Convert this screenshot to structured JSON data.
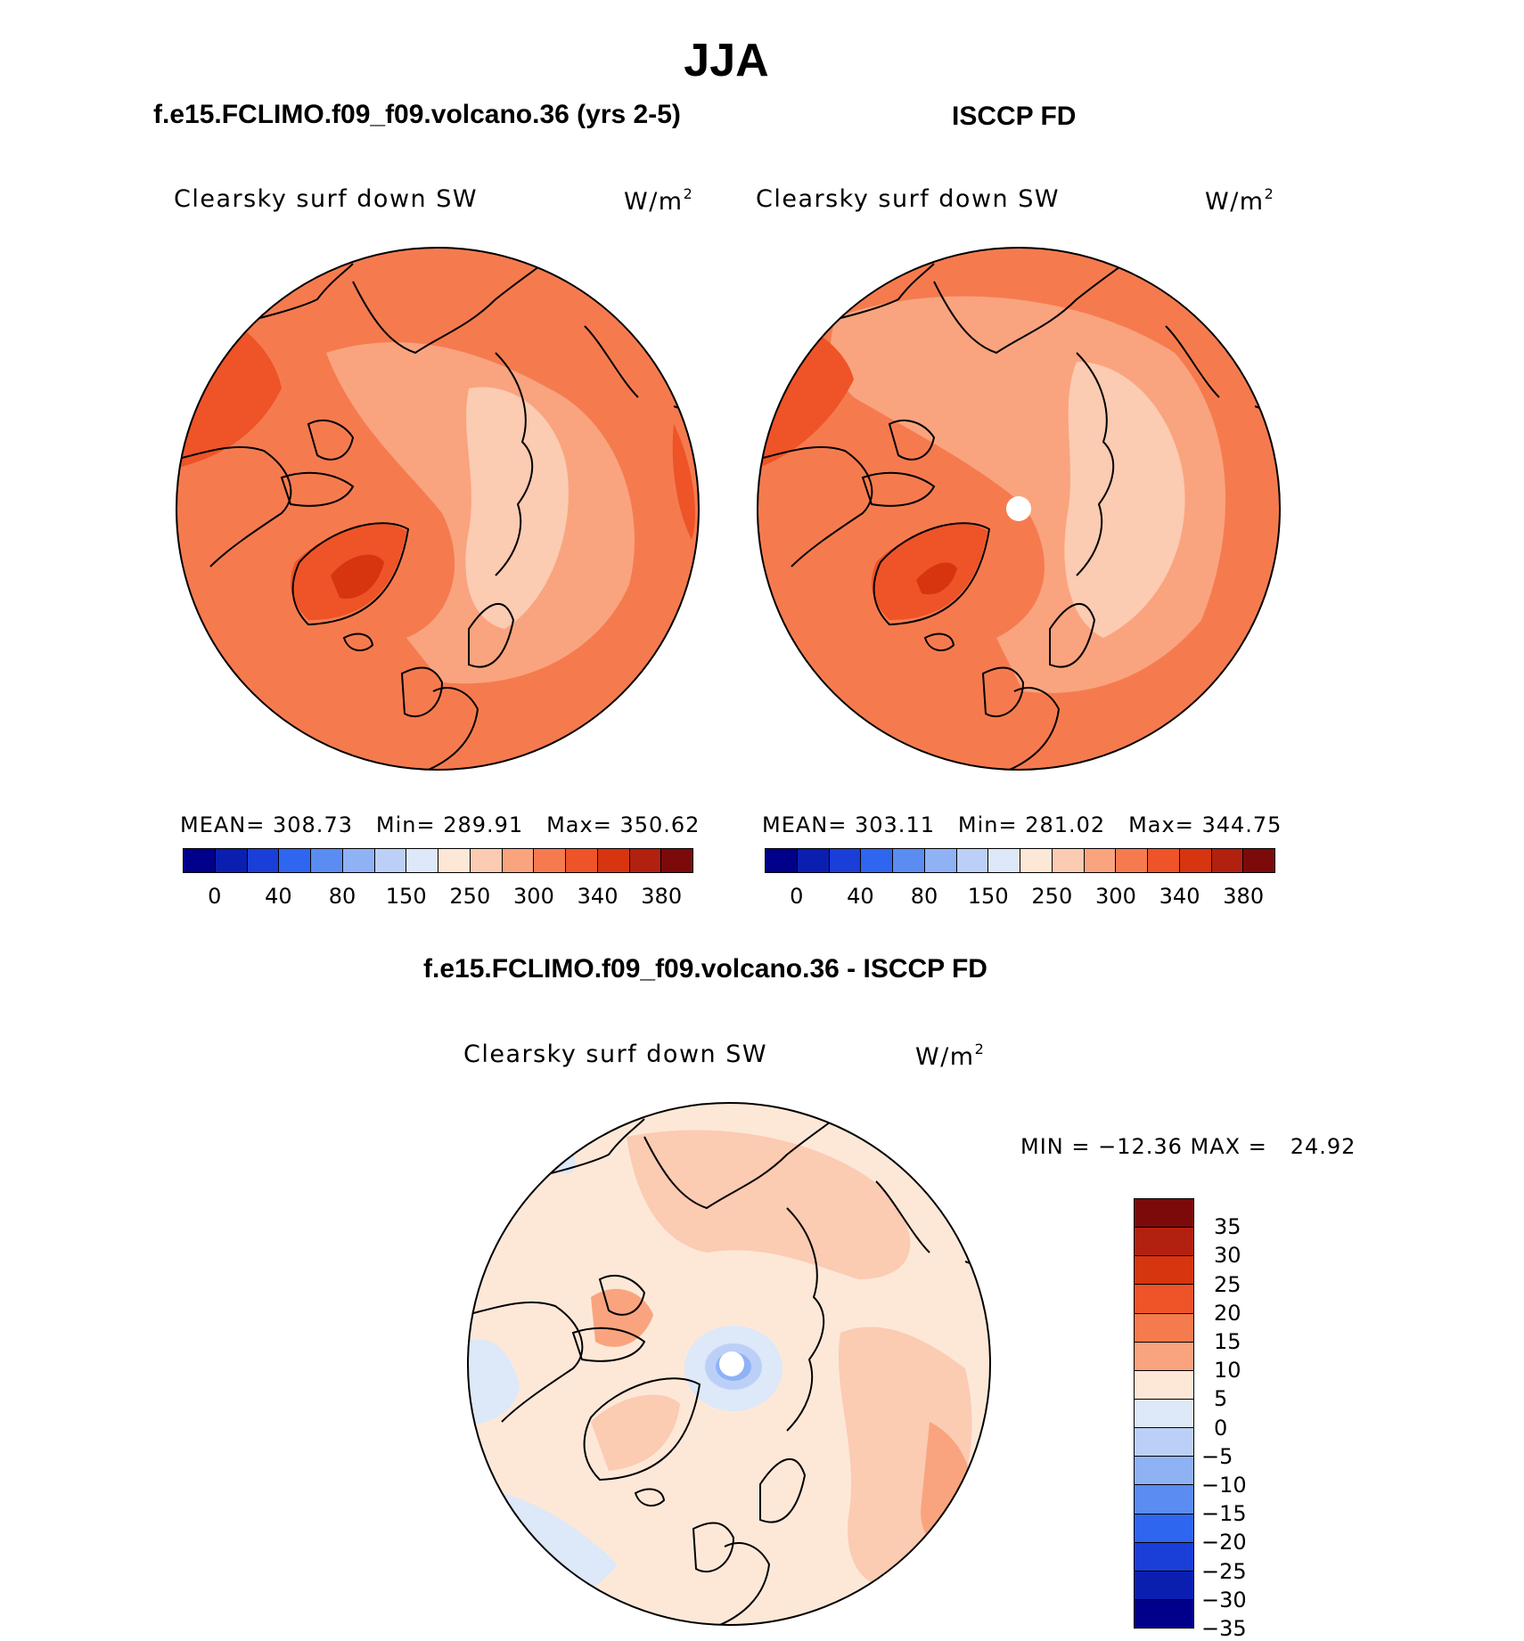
{
  "figure": {
    "season": "JJA",
    "panels": {
      "model": {
        "title": "f.e15.FCLIMO.f09_f09.volcano.36 (yrs 2-5)",
        "variable": "Clearsky surf down SW",
        "units_base": "W/m",
        "units_exp": "2",
        "mean_label": "MEAN=",
        "mean": "308.73",
        "min_label": "Min=",
        "min": "289.91",
        "max_label": "Max=",
        "max": "350.62"
      },
      "obs": {
        "title": "ISCCP FD",
        "variable": "Clearsky surf down SW",
        "units_base": "W/m",
        "units_exp": "2",
        "mean_label": "MEAN=",
        "mean": "303.11",
        "min_label": "Min=",
        "min": "281.02",
        "max_label": "Max=",
        "max": "344.75"
      },
      "diff": {
        "title": "f.e15.FCLIMO.f09_f09.volcano.36 - ISCCP FD",
        "variable": "Clearsky surf down SW",
        "units_base": "W/m",
        "units_exp": "2",
        "minmax_text": "MIN = −12.36 MAX =   24.92"
      }
    },
    "colorbar_abs": {
      "tick_labels": [
        "0",
        "40",
        "80",
        "150",
        "250",
        "300",
        "340",
        "380"
      ],
      "colors": [
        "#00008b",
        "#0a1fb0",
        "#1a3fd8",
        "#2f66f0",
        "#5b8cf2",
        "#8fb2f5",
        "#bcd0f7",
        "#dde8f8",
        "#fde8d8",
        "#fbcbb2",
        "#f9a47f",
        "#f57b4f",
        "#ef5328",
        "#d73410",
        "#b22010",
        "#7d0a0a"
      ]
    },
    "colorbar_diff": {
      "tick_labels": [
        "35",
        "30",
        "25",
        "20",
        "15",
        "10",
        "5",
        "0",
        "−5",
        "−10",
        "−15",
        "−20",
        "−25",
        "−30",
        "−35"
      ],
      "colors": [
        "#7d0a0a",
        "#b22010",
        "#d73410",
        "#ef5328",
        "#f57b4f",
        "#f9a47f",
        "#fde8d8",
        "#dde8f8",
        "#bcd0f7",
        "#8fb2f5",
        "#5b8cf2",
        "#2f66f0",
        "#1a3fd8",
        "#0a1fb0",
        "#00008b"
      ]
    },
    "map_colors": {
      "abs_base": "#f57b4f",
      "abs_dark": "#ef5328",
      "abs_darker": "#d73410",
      "abs_light": "#f9a47f",
      "abs_lighter": "#fbcbb2",
      "diff_base": "#fde8d8",
      "diff_light": "#fbcbb2",
      "diff_mid": "#f9a47f",
      "diff_blue": "#dde8f8",
      "diff_blue2": "#bcd0f7",
      "diff_blue3": "#8fb2f5"
    }
  }
}
